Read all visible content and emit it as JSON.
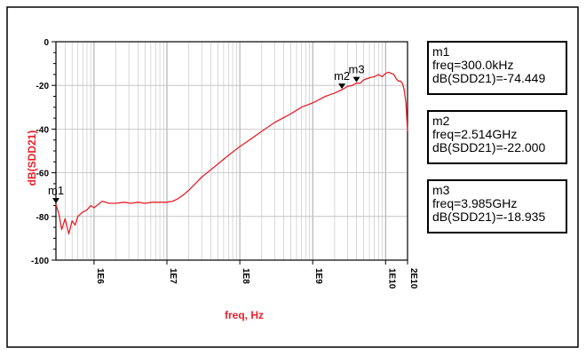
{
  "chart_data": {
    "type": "line",
    "xlabel": "freq, Hz",
    "ylabel": "dB(SDD21)",
    "xscale": "log",
    "xlim": [
      300000,
      20000000000
    ],
    "ylim": [
      -100,
      0
    ],
    "grid": true,
    "line_color": "#e8202a",
    "y_ticks": [
      0,
      -20,
      -40,
      -60,
      -80,
      -100
    ],
    "y_tick_labels": [
      "0",
      "-20",
      "-40",
      "-60",
      "-80",
      "-100"
    ],
    "x_ticks": [
      1000000,
      10000000,
      100000000,
      1000000000,
      10000000000,
      20000000000
    ],
    "x_tick_labels": [
      "1E6",
      "1E7",
      "1E8",
      "1E9",
      "1E10",
      "2E10"
    ],
    "series": [
      {
        "x": [
          300000,
          330000,
          360000,
          400000,
          450000,
          500000,
          550000,
          600000,
          700000,
          800000,
          900000,
          1000000,
          1300000,
          1600000,
          2000000,
          2600000,
          3200000,
          4000000,
          5000000,
          6300000,
          8000000,
          10000000,
          12000000,
          14000000,
          17000000,
          20000000,
          30000000,
          50000000,
          70000000,
          100000000,
          150000000,
          200000000,
          300000000,
          500000000,
          700000000,
          1000000000,
          1500000000,
          2000000000,
          2514000000,
          3000000000,
          3500000000,
          3985000000,
          4500000000,
          5000000000,
          6000000000,
          7000000000,
          8000000000,
          9000000000,
          10000000000,
          11000000000,
          12000000000,
          13000000000,
          14000000000,
          15000000000,
          16000000000,
          17000000000,
          18000000000,
          19000000000,
          20000000000
        ],
        "y": [
          -74.449,
          -79,
          -86,
          -81,
          -88,
          -82,
          -84,
          -80,
          -78,
          -77,
          -75,
          -76,
          -73,
          -74,
          -74,
          -73.5,
          -74,
          -73.5,
          -74,
          -73.5,
          -73.5,
          -73.5,
          -73,
          -72,
          -70,
          -68,
          -62,
          -56,
          -52,
          -48,
          -44,
          -41,
          -37,
          -33,
          -30,
          -28,
          -25,
          -23.5,
          -22.0,
          -20.5,
          -20,
          -18.935,
          -19,
          -17.5,
          -16.5,
          -16,
          -15,
          -16,
          -14.5,
          -14,
          -14.5,
          -15,
          -17,
          -18,
          -18,
          -19,
          -22,
          -28,
          -41
        ]
      }
    ],
    "markers": [
      {
        "name": "m1",
        "freq": 300000,
        "value": -74.449,
        "freq_text": "freq=300.0kHz",
        "value_text": "dB(SDD21)=-74.449"
      },
      {
        "name": "m2",
        "freq": 2514000000,
        "value": -22.0,
        "freq_text": "freq=2.514GHz",
        "value_text": "dB(SDD21)=-22.000"
      },
      {
        "name": "m3",
        "freq": 3985000000,
        "value": -18.935,
        "freq_text": "freq=3.985GHz",
        "value_text": "dB(SDD21)=-18.935"
      }
    ]
  }
}
